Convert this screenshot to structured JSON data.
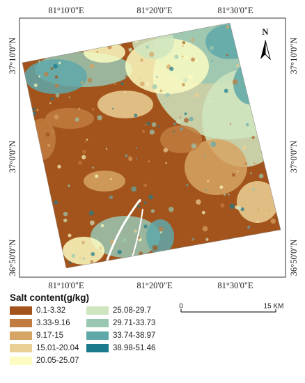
{
  "map": {
    "top_labels": [
      "81°10'0\"E",
      "81°20'0\"E",
      "81°30'0\"E"
    ],
    "bottom_labels": [
      "81°10'0\"E",
      "81°20'0\"E",
      "81°30'0\"E"
    ],
    "left_labels": [
      "37°10'0\"N",
      "37°0'0\"N",
      "36°50'0\"N"
    ],
    "right_labels": [
      "37°10'0\"N",
      "37°0'0\"N",
      "36°50'0\"N"
    ],
    "north": "N"
  },
  "legend": {
    "title": "Salt content(g/kg)",
    "items": [
      {
        "label": "0.1-3.32",
        "color": "#a3541c"
      },
      {
        "label": "3.33-9.16",
        "color": "#c17c3f"
      },
      {
        "label": "9.17-15",
        "color": "#d6a463"
      },
      {
        "label": "15.01-20.04",
        "color": "#ebd095"
      },
      {
        "label": "20.05-25.07",
        "color": "#fbfbc2"
      },
      {
        "label": "25.08-29.7",
        "color": "#cfe5c0"
      },
      {
        "label": "29.71-33.73",
        "color": "#99c7b1"
      },
      {
        "label": "33.74-38.97",
        "color": "#5fa8a9"
      },
      {
        "label": "38.98-51.46",
        "color": "#1b7a8c"
      }
    ]
  },
  "scale_bar": {
    "labels": [
      "0",
      "15 KM"
    ]
  }
}
